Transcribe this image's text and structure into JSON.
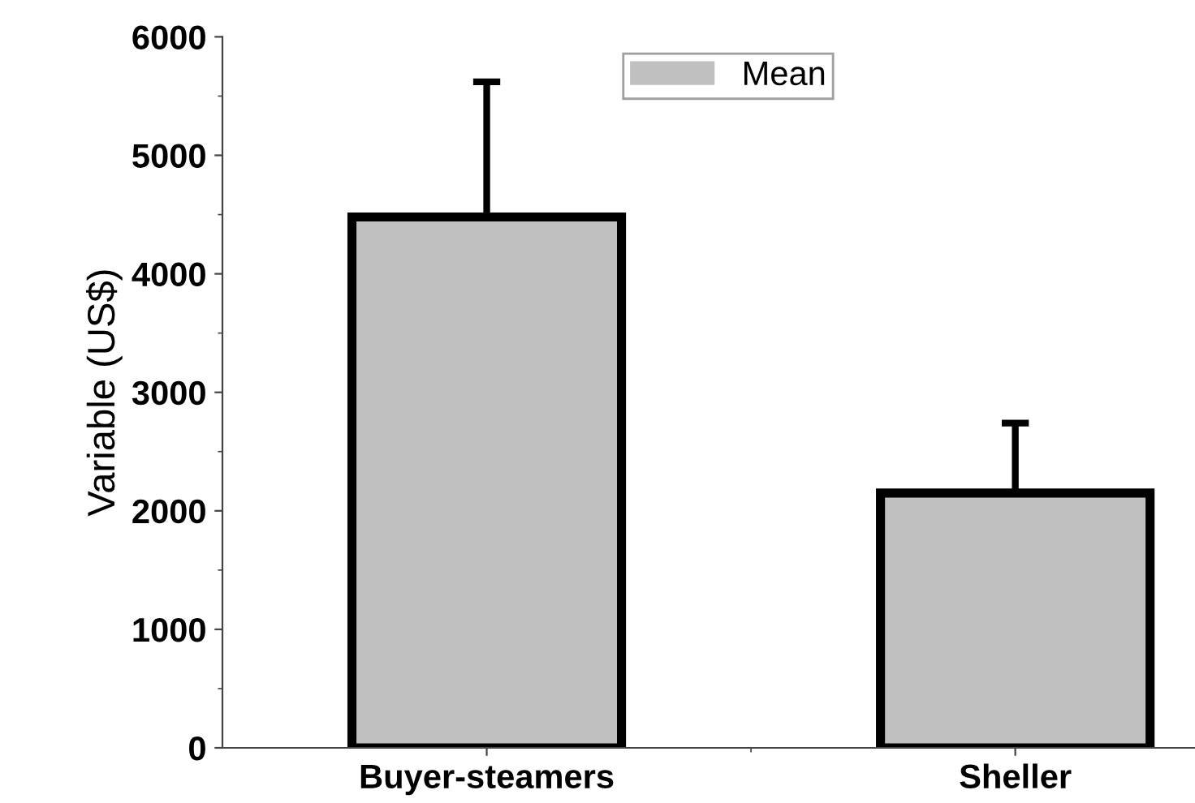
{
  "chart_data": {
    "type": "bar",
    "ylabel": "Variable (US$)",
    "categories": [
      "Buyer-steamers",
      "Sheller"
    ],
    "series": [
      {
        "name": "Mean",
        "color": "#c0c0c0",
        "values": [
          4480,
          2150
        ],
        "errors": [
          [
            4480,
            5620
          ],
          [
            2150,
            2740
          ]
        ]
      }
    ],
    "ylim": [
      0,
      6000
    ],
    "yticks": [
      0,
      1000,
      2000,
      3000,
      4000,
      5000,
      6000
    ],
    "grid": false,
    "legend": "top"
  }
}
